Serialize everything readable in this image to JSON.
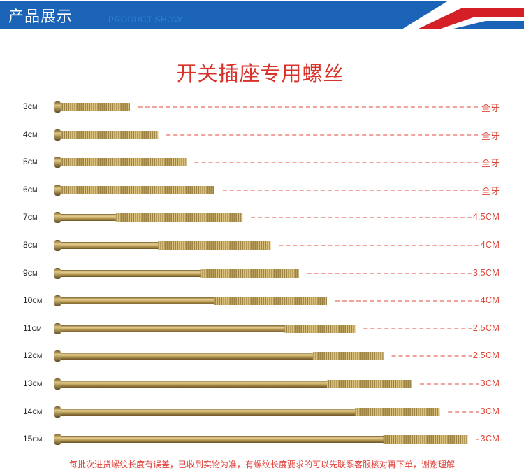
{
  "banner": {
    "title": "产品展示",
    "subtitle": "PRODUCT SHOW",
    "colors": {
      "blue": "#1a63b7",
      "red": "#d51f26"
    }
  },
  "heading": "开关插座专用螺丝",
  "unit": "CM",
  "screws": [
    {
      "length": "3",
      "thread": "全牙",
      "length_cm": 3,
      "thread_cm": 3
    },
    {
      "length": "4",
      "thread": "全牙",
      "length_cm": 4,
      "thread_cm": 4
    },
    {
      "length": "5",
      "thread": "全牙",
      "length_cm": 5,
      "thread_cm": 5
    },
    {
      "length": "6",
      "thread": "全牙",
      "length_cm": 6,
      "thread_cm": 6
    },
    {
      "length": "7",
      "thread": "4.5CM",
      "length_cm": 7,
      "thread_cm": 4.5
    },
    {
      "length": "8",
      "thread": "4CM",
      "length_cm": 8,
      "thread_cm": 4
    },
    {
      "length": "9",
      "thread": "3.5CM",
      "length_cm": 9,
      "thread_cm": 3.5
    },
    {
      "length": "10",
      "thread": "4CM",
      "length_cm": 10,
      "thread_cm": 4
    },
    {
      "length": "11",
      "thread": "2.5CM",
      "length_cm": 11,
      "thread_cm": 2.5
    },
    {
      "length": "12",
      "thread": "2.5CM",
      "length_cm": 12,
      "thread_cm": 2.5
    },
    {
      "length": "13",
      "thread": "3CM",
      "length_cm": 13,
      "thread_cm": 3
    },
    {
      "length": "14",
      "thread": "3CM",
      "length_cm": 14,
      "thread_cm": 3
    },
    {
      "length": "15",
      "thread": "3CM",
      "length_cm": 15,
      "thread_cm": 3
    }
  ],
  "footer": "每批次进货螺纹长度有误差，已收到实物为准，有螺纹长度要求的可以先联系客服核对再下单，谢谢理解",
  "colors": {
    "accent_red": "#e0413a",
    "screw": "#b89a52"
  }
}
